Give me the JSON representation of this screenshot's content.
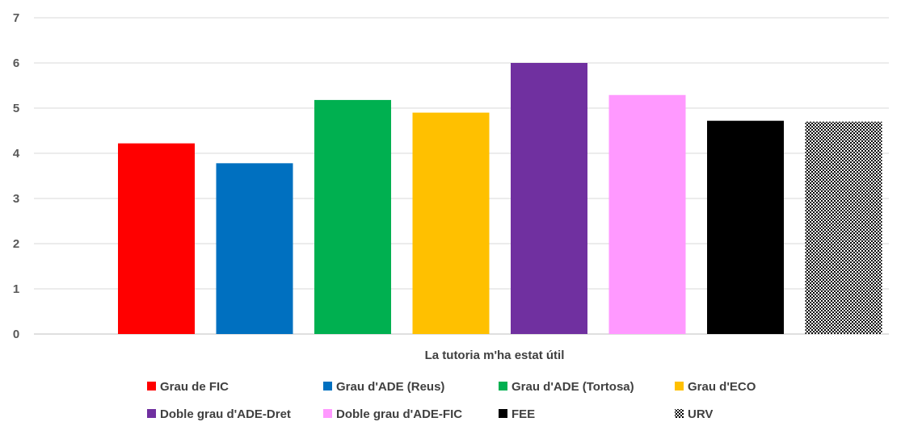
{
  "chart_data": {
    "type": "bar",
    "title": "",
    "xlabel": "La tutoria m'ha estat útil",
    "ylabel": "",
    "ylim": [
      0,
      7
    ],
    "yticks": [
      0,
      1,
      2,
      3,
      4,
      5,
      6,
      7
    ],
    "grid": true,
    "legend_position": "bottom",
    "categories": [
      "La tutoria m'ha estat útil"
    ],
    "series": [
      {
        "name": "Grau de FIC",
        "values": [
          4.22
        ],
        "color": "#ff0000"
      },
      {
        "name": "Grau d'ADE (Reus)",
        "values": [
          3.78
        ],
        "color": "#0070c0"
      },
      {
        "name": "Grau d'ADE (Tortosa)",
        "values": [
          5.18
        ],
        "color": "#00b050"
      },
      {
        "name": "Grau d'ECO",
        "values": [
          4.9
        ],
        "color": "#ffc000"
      },
      {
        "name": "Doble grau d'ADE-Dret",
        "values": [
          6.0
        ],
        "color": "#7030a0"
      },
      {
        "name": "Doble grau d'ADE-FIC",
        "values": [
          5.29
        ],
        "color": "#ff99ff"
      },
      {
        "name": "FEE",
        "values": [
          4.72
        ],
        "color": "#000000"
      },
      {
        "name": "URV",
        "values": [
          4.7
        ],
        "color": "checkered"
      }
    ]
  }
}
